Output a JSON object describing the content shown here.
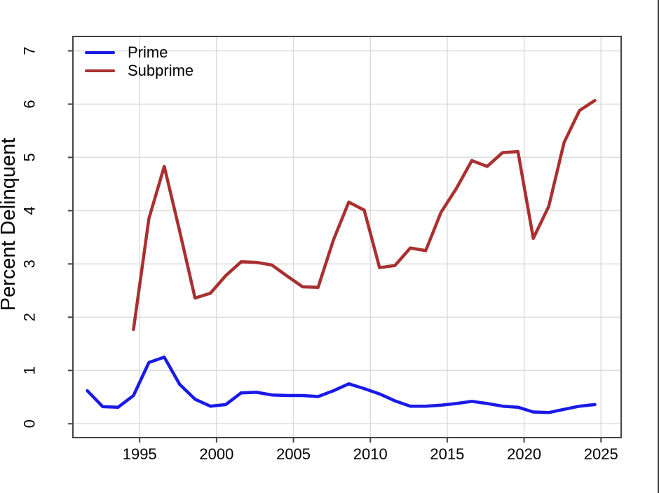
{
  "chart_data": {
    "type": "line",
    "title": "",
    "xlabel": "",
    "ylabel": "Percent Delinquent",
    "xlim": [
      1990.66,
      2026.31
    ],
    "ylim": [
      -0.26,
      7.27
    ],
    "x_ticks": [
      1995,
      2000,
      2005,
      2010,
      2015,
      2020,
      2025
    ],
    "y_ticks": [
      0,
      1,
      2,
      3,
      4,
      5,
      6,
      7
    ],
    "grid": true,
    "legend_position": "top-left",
    "point_x_offset": 0.6,
    "series": [
      {
        "name": "Prime",
        "color": "#1a1ae8",
        "years": [
          1991,
          1992,
          1993,
          1994,
          1995,
          1996,
          1997,
          1998,
          1999,
          2000,
          2001,
          2002,
          2003,
          2004,
          2005,
          2006,
          2007,
          2008,
          2009,
          2010,
          2011,
          2012,
          2013,
          2014,
          2015,
          2016,
          2017,
          2018,
          2019,
          2020,
          2021,
          2022,
          2023,
          2024
        ],
        "values": [
          0.62,
          0.32,
          0.31,
          0.53,
          1.15,
          1.25,
          0.74,
          0.46,
          0.33,
          0.36,
          0.58,
          0.59,
          0.54,
          0.53,
          0.53,
          0.51,
          0.62,
          0.75,
          0.66,
          0.56,
          0.43,
          0.33,
          0.33,
          0.35,
          0.38,
          0.42,
          0.38,
          0.33,
          0.31,
          0.22,
          0.21,
          0.27,
          0.33,
          0.36
        ]
      },
      {
        "name": "Subprime",
        "color": "#a93030",
        "years": [
          1994,
          1995,
          1996,
          1997,
          1998,
          1999,
          2000,
          2001,
          2002,
          2003,
          2004,
          2005,
          2006,
          2007,
          2008,
          2009,
          2010,
          2011,
          2012,
          2013,
          2014,
          2015,
          2016,
          2017,
          2018,
          2019,
          2020,
          2021,
          2022,
          2023,
          2024
        ],
        "values": [
          1.77,
          3.85,
          4.83,
          3.62,
          2.36,
          2.45,
          2.78,
          3.04,
          3.03,
          2.98,
          2.77,
          2.57,
          2.56,
          3.45,
          4.16,
          4.01,
          2.93,
          2.97,
          3.3,
          3.25,
          3.97,
          4.42,
          4.94,
          4.83,
          5.09,
          5.11,
          3.48,
          4.08,
          5.28,
          5.88,
          6.07
        ]
      }
    ],
    "colors": {
      "grid": "#dcdcdc",
      "axis": "#444444",
      "text": "#000000"
    }
  }
}
